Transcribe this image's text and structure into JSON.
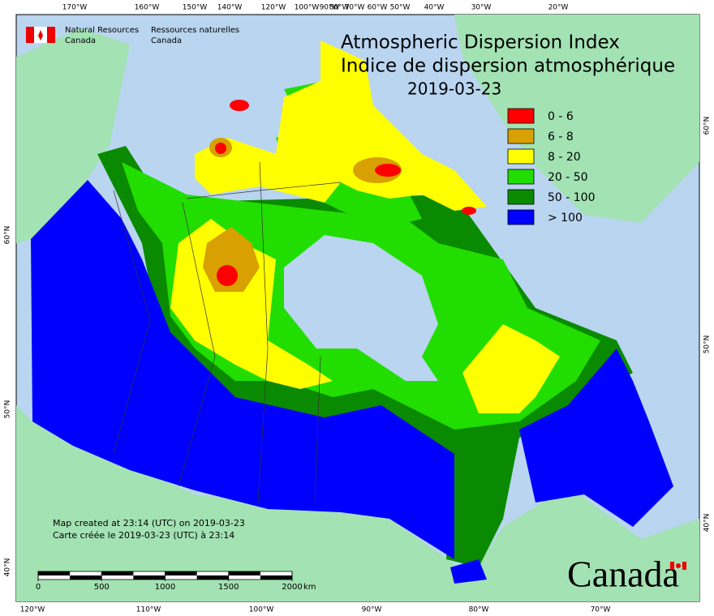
{
  "header": {
    "department_en": [
      "Natural Resources",
      "Canada"
    ],
    "department_fr": [
      "Ressources naturelles",
      "Canada"
    ]
  },
  "title": [
    "Atmospheric Dispersion Index",
    "Indice de dispersion atmosphérique"
  ],
  "date": "2019-03-23",
  "legend": [
    {
      "label": "0 - 6",
      "color": "#ff0000"
    },
    {
      "label": "6 - 8",
      "color": "#d8a000"
    },
    {
      "label": "8 - 20",
      "color": "#ffff00"
    },
    {
      "label": "20 - 50",
      "color": "#22dd00"
    },
    {
      "label": "50 - 100",
      "color": "#0a8a00"
    },
    {
      "label": "> 100",
      "color": "#0000ff"
    }
  ],
  "graticule": {
    "top": [
      "170°W",
      "160°W",
      "150°W",
      "140°W",
      "120°W",
      "100°W",
      "90°W",
      "80°W",
      "70°W",
      "60°W",
      "50°W",
      "40°W",
      "30°W",
      "20°W"
    ],
    "bottom": [
      "120°W",
      "110°W",
      "100°W",
      "90°W",
      "80°W",
      "70°W"
    ],
    "left": [
      "60°N",
      "50°N",
      "40°N"
    ],
    "right": [
      "60°N",
      "50°N",
      "40°N"
    ]
  },
  "notes": [
    "Map created at 23:14 (UTC) on 2019-03-23",
    "Carte créée le 2019-03-23 (UTC) à 23:14"
  ],
  "scale_bar": {
    "ticks": [
      0,
      500,
      1000,
      1500,
      2000
    ],
    "unit": "km"
  },
  "wordmark": "Canada"
}
